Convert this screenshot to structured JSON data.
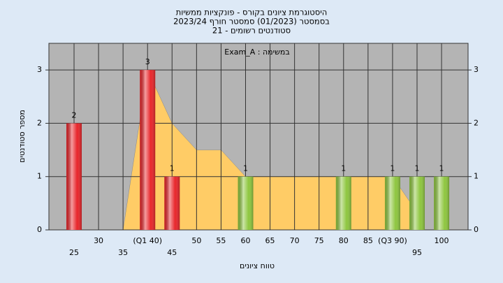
{
  "chart_data": {
    "type": "bar",
    "title": [
      "היסטוגרמת ציונים בקורס - פונקציות ממשיות",
      "בסמסטר  (01/2023)  סמסטר חורף 2023/24",
      "סטודנטים רשומים - 21"
    ],
    "annotation": "במשימה : Exam_A",
    "y_label": "מספר סטודנטים",
    "x_label": "טווח ציונים",
    "categories": [
      "25",
      "30",
      "35",
      "(Q1 40)",
      "45",
      "50",
      "55",
      "60",
      "65",
      "70",
      "75",
      "80",
      "85",
      "(Q3 90)",
      "95",
      "100"
    ],
    "series": [
      {
        "values": [
          2,
          0,
          0,
          3,
          1,
          0,
          0,
          1,
          0,
          0,
          0,
          1,
          0,
          1,
          1,
          1
        ],
        "colors": [
          "#e8262b",
          "#e8262b",
          "#e8262b",
          "#e8262b",
          "#e8262b",
          "#e8262b",
          "#e8262b",
          "#8ec63f",
          "#8ec63f",
          "#8ec63f",
          "#8ec63f",
          "#8ec63f",
          "#8ec63f",
          "#8ec63f",
          "#8ec63f",
          "#8ec63f"
        ]
      }
    ],
    "area": {
      "values": [
        null,
        null,
        0,
        3,
        2,
        1.5,
        1.5,
        1,
        1,
        1,
        1,
        1,
        1,
        1,
        0.33,
        null
      ],
      "color": "#ffcc66"
    },
    "ylim": [
      0,
      3.5
    ],
    "yticks": [
      0,
      1,
      2,
      3
    ],
    "y2lim": [
      0,
      3.5
    ],
    "y2ticks": [
      0,
      1,
      2,
      3
    ],
    "grid": true
  }
}
